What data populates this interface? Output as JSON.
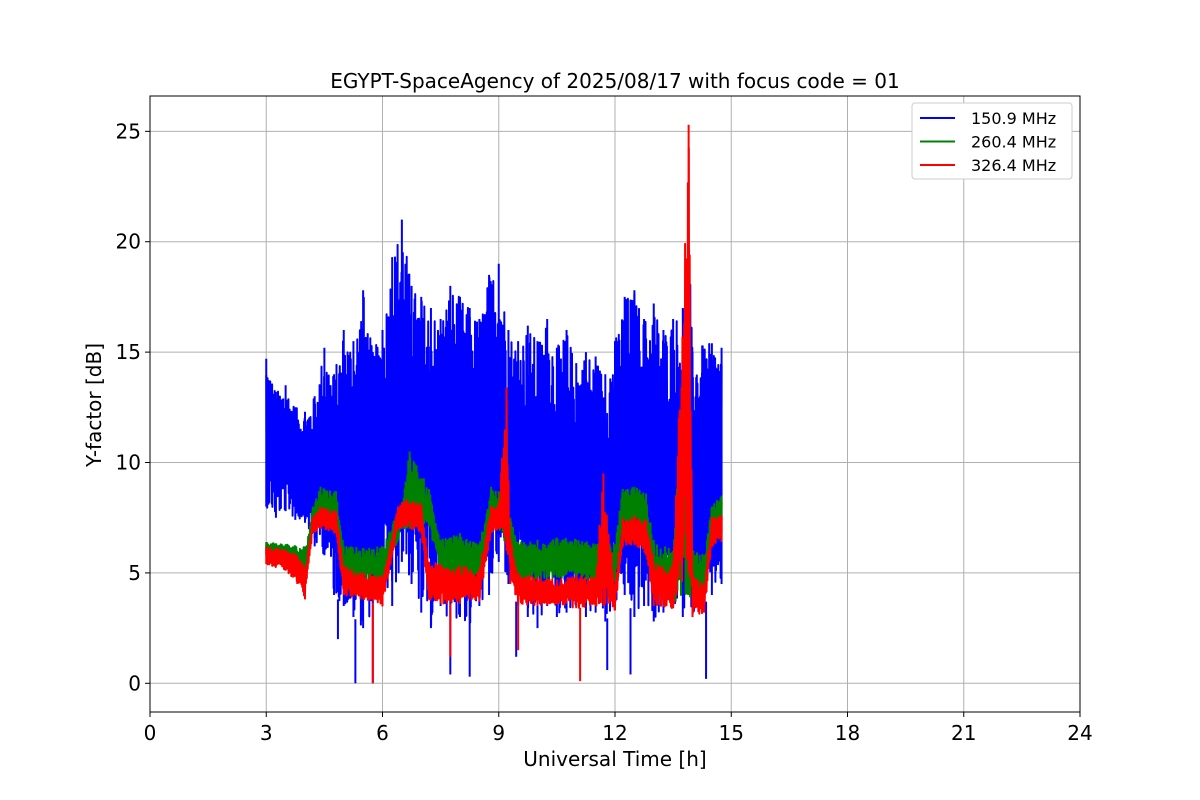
{
  "chart_data": {
    "type": "line",
    "title": "EGYPT-SpaceAgency of 2025/08/17 with focus code = 01",
    "xlabel": "Universal Time [h]",
    "ylabel": "Y-factor [dB]",
    "xlim": [
      0,
      24
    ],
    "ylim": [
      -1.3,
      26.6
    ],
    "xticks": [
      0,
      3,
      6,
      9,
      12,
      15,
      18,
      21,
      24
    ],
    "yticks": [
      0,
      5,
      10,
      15,
      20,
      25
    ],
    "grid": true,
    "legend_position": "top-right",
    "series": [
      {
        "name": "150.9 MHz",
        "color": "#0000ff",
        "x": [
          3.0,
          3.25,
          3.5,
          3.75,
          4.0,
          4.25,
          4.5,
          4.75,
          5.0,
          5.25,
          5.5,
          5.75,
          6.0,
          6.25,
          6.5,
          6.75,
          7.0,
          7.25,
          7.5,
          7.75,
          8.0,
          8.25,
          8.5,
          8.75,
          9.0,
          9.25,
          9.5,
          9.75,
          10.0,
          10.25,
          10.5,
          10.75,
          11.0,
          11.25,
          11.5,
          11.75,
          12.0,
          12.25,
          12.5,
          12.75,
          13.0,
          13.25,
          13.5,
          13.75,
          13.9,
          14.0,
          14.25,
          14.5,
          14.75
        ],
        "upper": [
          14.7,
          13.2,
          13.5,
          12.5,
          12.3,
          13.0,
          15.2,
          14.0,
          16.0,
          15.5,
          17.8,
          15.0,
          16.0,
          19.3,
          21.0,
          18.0,
          17.5,
          17.0,
          16.5,
          18.0,
          17.5,
          17.0,
          16.5,
          18.5,
          19.0,
          16.0,
          15.5,
          16.2,
          15.5,
          16.5,
          15.2,
          16.0,
          14.5,
          15.0,
          14.8,
          14.0,
          15.5,
          17.5,
          17.8,
          16.5,
          17.2,
          16.0,
          16.5,
          17.0,
          20.6,
          15.0,
          15.3,
          15.4,
          15.2
        ],
        "lower": [
          8.0,
          7.5,
          7.8,
          7.4,
          7.3,
          6.2,
          5.8,
          4.0,
          3.5,
          3.0,
          2.5,
          3.2,
          4.5,
          3.5,
          5.5,
          4.5,
          3.2,
          2.5,
          3.5,
          2.8,
          3.0,
          2.3,
          3.5,
          4.0,
          5.5,
          4.5,
          3.5,
          3.0,
          2.5,
          3.5,
          3.0,
          3.2,
          3.5,
          3.0,
          3.2,
          2.8,
          3.5,
          4.0,
          3.0,
          3.5,
          2.8,
          3.2,
          3.5,
          3.0,
          4.5,
          3.0,
          3.5,
          4.0,
          4.5
        ],
        "minima": [
          {
            "x": 4.85,
            "y": 2.0
          },
          {
            "x": 5.3,
            "y": 0.0
          },
          {
            "x": 5.75,
            "y": 0.0
          },
          {
            "x": 7.75,
            "y": 0.4
          },
          {
            "x": 8.25,
            "y": 0.3
          },
          {
            "x": 9.45,
            "y": 1.2
          },
          {
            "x": 11.8,
            "y": 0.6
          },
          {
            "x": 12.4,
            "y": 0.4
          },
          {
            "x": 14.35,
            "y": 0.2
          }
        ]
      },
      {
        "name": "260.4 MHz",
        "color": "#008000",
        "x": [
          3.0,
          3.5,
          4.0,
          4.2,
          4.4,
          4.8,
          5.0,
          5.5,
          6.0,
          6.5,
          6.7,
          7.2,
          7.5,
          8.0,
          8.5,
          8.8,
          9.0,
          9.3,
          9.5,
          10.0,
          10.5,
          11.0,
          11.5,
          12.0,
          12.2,
          12.5,
          12.8,
          13.0,
          13.5,
          13.9,
          14.0,
          14.3,
          14.5,
          14.75
        ],
        "upper": [
          6.4,
          6.3,
          6.2,
          8.0,
          8.9,
          8.7,
          6.2,
          6.1,
          6.2,
          8.2,
          10.5,
          8.8,
          6.5,
          6.8,
          6.3,
          8.9,
          8.7,
          7.5,
          6.4,
          6.5,
          6.6,
          6.5,
          6.3,
          6.3,
          8.8,
          8.9,
          8.6,
          6.5,
          6.0,
          17.5,
          6.0,
          5.8,
          8.0,
          8.5
        ],
        "lower": [
          5.8,
          5.7,
          4.5,
          7.0,
          7.3,
          7.2,
          4.8,
          4.6,
          4.5,
          7.0,
          7.0,
          7.1,
          4.8,
          4.5,
          4.6,
          7.2,
          7.0,
          5.8,
          4.5,
          4.6,
          4.8,
          4.7,
          4.5,
          4.6,
          7.0,
          7.1,
          6.8,
          4.0,
          3.6,
          4.0,
          3.5,
          3.6,
          6.5,
          6.8
        ]
      },
      {
        "name": "326.4 MHz",
        "color": "#ff0000",
        "x": [
          3.0,
          3.5,
          3.8,
          4.0,
          4.2,
          4.4,
          4.8,
          5.0,
          5.5,
          6.0,
          6.4,
          6.6,
          7.0,
          7.2,
          7.5,
          8.0,
          8.5,
          8.8,
          9.0,
          9.2,
          9.3,
          9.5,
          10.0,
          10.5,
          11.0,
          11.5,
          11.7,
          12.0,
          12.2,
          12.5,
          12.8,
          13.0,
          13.5,
          13.9,
          14.0,
          14.3,
          14.5,
          14.75
        ],
        "upper": [
          6.2,
          6.0,
          5.8,
          5.2,
          7.5,
          8.0,
          7.8,
          5.3,
          5.0,
          4.8,
          8.0,
          8.3,
          8.1,
          5.5,
          5.4,
          5.3,
          5.2,
          8.0,
          8.2,
          13.4,
          6.5,
          5.0,
          4.8,
          4.7,
          4.9,
          4.8,
          9.5,
          4.5,
          7.5,
          7.6,
          7.4,
          5.5,
          5.3,
          25.3,
          5.0,
          4.5,
          7.5,
          7.6
        ],
        "lower": [
          5.4,
          5.1,
          4.5,
          3.8,
          6.8,
          7.0,
          6.8,
          4.0,
          3.8,
          3.5,
          7.0,
          7.1,
          6.8,
          3.8,
          3.6,
          3.6,
          3.7,
          6.8,
          7.0,
          6.0,
          4.5,
          3.6,
          3.5,
          3.6,
          3.4,
          3.5,
          3.5,
          3.3,
          6.2,
          6.3,
          5.8,
          3.5,
          3.4,
          5.0,
          3.0,
          3.2,
          6.2,
          6.4
        ],
        "minima": [
          {
            "x": 5.75,
            "y": 0.0
          },
          {
            "x": 11.1,
            "y": 0.1
          },
          {
            "x": 7.75,
            "y": 1.2
          },
          {
            "x": 9.5,
            "y": 1.5
          }
        ]
      }
    ]
  }
}
